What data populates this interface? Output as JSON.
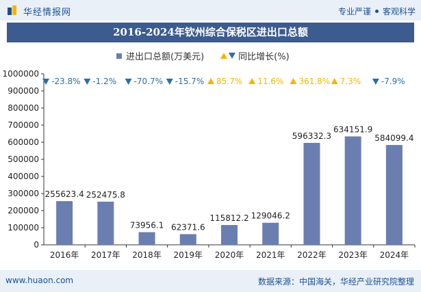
{
  "header": {
    "brand": "华经情报网",
    "slogan_left": "专业严谨",
    "slogan_right": "客观科学"
  },
  "title": "2016-2024年钦州综合保税区进出口总额",
  "legend": {
    "bar_label": "进出口总额(万美元)",
    "growth_label": "同比增长(%)"
  },
  "footer": {
    "website": "www.huaon.com",
    "source": "数据来源：中国海关，华经产业研究院整理"
  },
  "colors": {
    "bar": "#6a7fb0",
    "up": "#f2b705",
    "down": "#2d6fa3",
    "title_bg": "#3c5b8f"
  },
  "chart_data": {
    "type": "bar",
    "title": "2016-2024年钦州综合保税区进出口总额",
    "categories": [
      "2016年",
      "2017年",
      "2018年",
      "2019年",
      "2020年",
      "2021年",
      "2022年",
      "2023年",
      "2024年"
    ],
    "series": [
      {
        "name": "进出口总额(万美元)",
        "values": [
          255623.4,
          252475.8,
          73956.1,
          62371.6,
          115812.2,
          129046.2,
          596332.3,
          634151.9,
          584099.4
        ]
      },
      {
        "name": "同比增长(%)",
        "values": [
          -23.8,
          -1.2,
          -70.7,
          -15.7,
          85.7,
          11.6,
          361.8,
          7.3,
          -7.9
        ]
      }
    ],
    "value_labels": [
      "255623.4",
      "252475.8",
      "73956.1",
      "62371.6",
      "115812.2",
      "129046.2",
      "596332.3",
      "634151.9",
      "584099.4"
    ],
    "growth_labels": [
      "-23.8%",
      "-1.2%",
      "-70.7%",
      "-15.7%",
      "85.7%",
      "11.6%",
      "361.8%",
      "7.3%",
      "-7.9%"
    ],
    "yticks": [
      "0",
      "100000",
      "200000",
      "300000",
      "400000",
      "500000",
      "600000",
      "700000",
      "800000",
      "900000",
      "1000000"
    ],
    "ylim": [
      0,
      1000000
    ],
    "xlabel": "",
    "ylabel": ""
  }
}
